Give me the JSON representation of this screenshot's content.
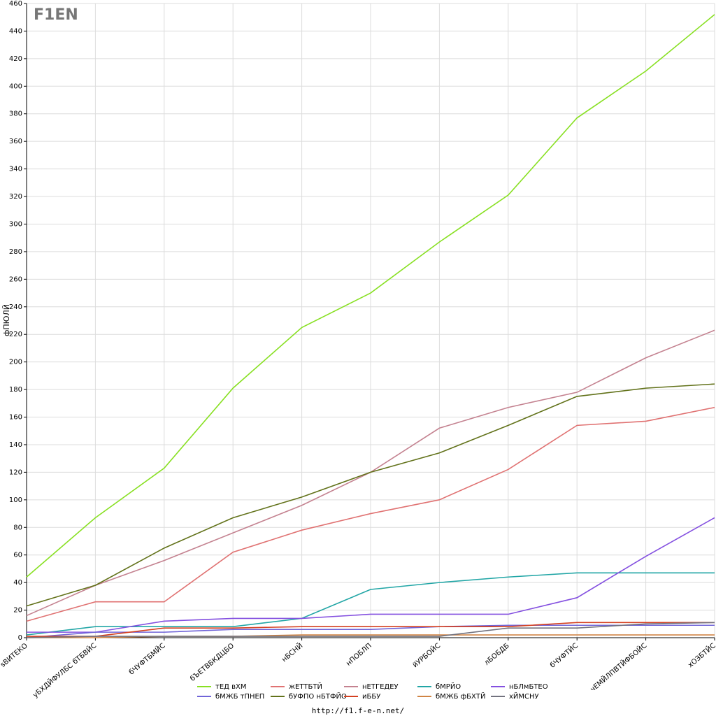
{
  "chart_data": {
    "type": "line",
    "y_label": "фПЮЛЙ",
    "logo": "F1EN",
    "footer": "http://f1.f-e-n.net/",
    "categories": [
      "ѕВИТЕКО",
      "уБХДЙФУЛБС бТБВЙС",
      "бЧУФТБМЙС",
      "бЪЕТВБКДЦБО",
      "нБСНЙ",
      "нПОБЛП",
      "йУРБОЙС",
      "лБОБДБ",
      "бЧУФТЙС",
      "чЕМЙЛПВТЙФБОЙС",
      "хОЗБТЙС"
    ],
    "ylim": [
      0,
      460
    ],
    "yticks": [
      0,
      20,
      40,
      60,
      80,
      100,
      120,
      140,
      160,
      180,
      200,
      220,
      240,
      260,
      280,
      300,
      320,
      340,
      360,
      380,
      400,
      420,
      440,
      460
    ],
    "grid": true,
    "legend": "bottom",
    "series": [
      {
        "name": "тЕД вХМ",
        "color": "#88e022",
        "values": [
          44,
          87,
          123,
          181,
          225,
          250,
          287,
          321,
          377,
          411,
          452
        ]
      },
      {
        "name": "жЕТТБТЙ",
        "color": "#e07272",
        "values": [
          12,
          26,
          26,
          62,
          78,
          90,
          100,
          122,
          154,
          157,
          167
        ]
      },
      {
        "name": "нЕТГЕДЕУ",
        "color": "#c48290",
        "values": [
          16,
          38,
          56,
          76,
          96,
          120,
          152,
          167,
          178,
          203,
          223
        ]
      },
      {
        "name": "бМРЙО",
        "color": "#22a6a6",
        "values": [
          2,
          8,
          8,
          8,
          14,
          35,
          40,
          44,
          47,
          47,
          47
        ]
      },
      {
        "name": "нБЛмБТЕО",
        "color": "#8450e0",
        "values": [
          4,
          4,
          12,
          14,
          14,
          17,
          17,
          17,
          29,
          59,
          87
        ]
      },
      {
        "name": "бМЖБ тПНЕП",
        "color": "#7064d8",
        "values": [
          0,
          4,
          4,
          6,
          6,
          6,
          8,
          9,
          9,
          9,
          9
        ]
      },
      {
        "name": "бУФПО нБТФЙО",
        "color": "#62721a",
        "values": [
          23,
          38,
          65,
          87,
          102,
          120,
          134,
          154,
          175,
          181,
          184
        ]
      },
      {
        "name": "иББУ",
        "color": "#d44020",
        "values": [
          1,
          1,
          7,
          7,
          8,
          8,
          8,
          8,
          11,
          11,
          11
        ]
      },
      {
        "name": "бМЖБ фБХТЙ",
        "color": "#d08444",
        "values": [
          0,
          0,
          1,
          1,
          2,
          2,
          2,
          2,
          2,
          2,
          2
        ]
      },
      {
        "name": "хЙМСНУ",
        "color": "#72727e",
        "values": [
          0,
          1,
          1,
          1,
          1,
          1,
          1,
          7,
          7,
          10,
          11
        ]
      }
    ]
  }
}
